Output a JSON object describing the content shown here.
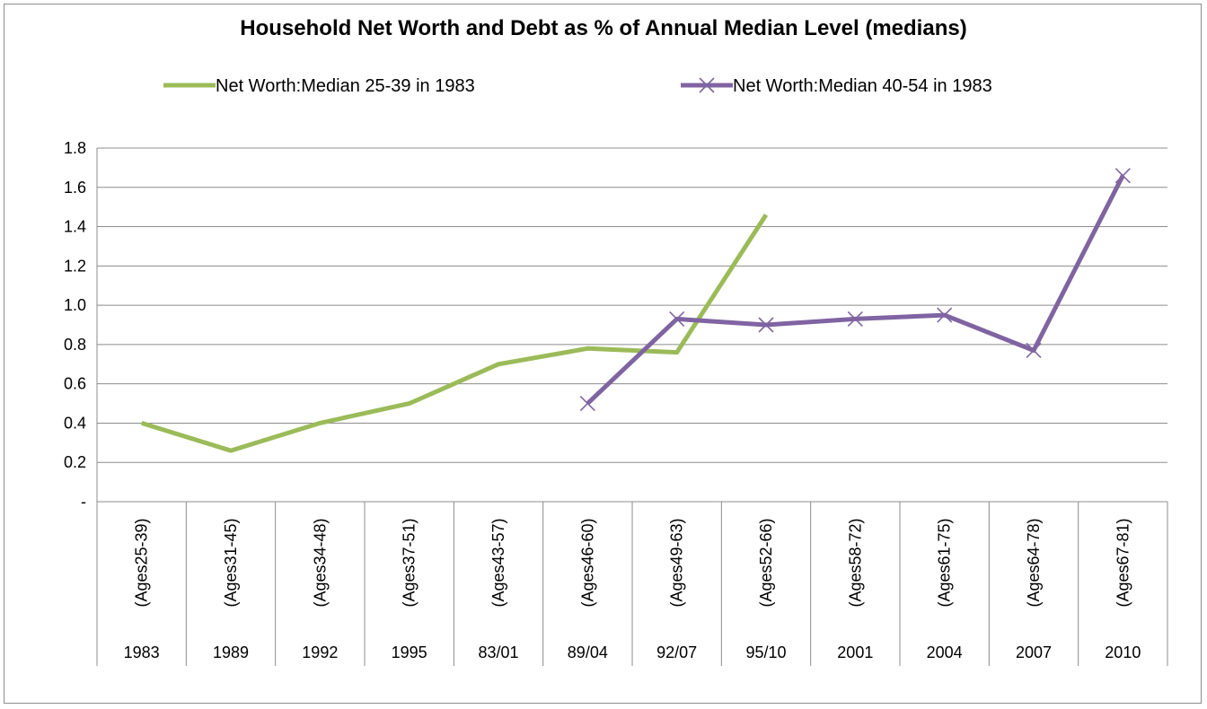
{
  "chart_data": {
    "type": "line",
    "title": "Household Net Worth and Debt as % of Annual Median Level (medians)",
    "categories": [
      {
        "age": "(Ages25-39)",
        "year": "1983"
      },
      {
        "age": "(Ages31-45)",
        "year": "1989"
      },
      {
        "age": "(Ages34-48)",
        "year": "1992"
      },
      {
        "age": "(Ages37-51)",
        "year": "1995"
      },
      {
        "age": "(Ages43-57)",
        "year": "83/01"
      },
      {
        "age": "(Ages46-60)",
        "year": "89/04"
      },
      {
        "age": "(Ages49-63)",
        "year": "92/07"
      },
      {
        "age": "(Ages52-66)",
        "year": "95/10"
      },
      {
        "age": "(Ages58-72)",
        "year": "2001"
      },
      {
        "age": "(Ages61-75)",
        "year": "2004"
      },
      {
        "age": "(Ages64-78)",
        "year": "2007"
      },
      {
        "age": "(Ages67-81)",
        "year": "2010"
      }
    ],
    "series": [
      {
        "name": "Net Worth:Median 25-39 in 1983",
        "color": "#9bbb59",
        "marker": "none",
        "values": [
          0.4,
          0.26,
          0.4,
          0.5,
          0.7,
          0.78,
          0.76,
          1.46,
          null,
          null,
          null,
          null
        ]
      },
      {
        "name": "Net Worth:Median 40-54 in 1983",
        "color": "#8064a2",
        "marker": "x",
        "values": [
          null,
          null,
          null,
          null,
          null,
          0.5,
          0.93,
          0.9,
          0.93,
          0.95,
          0.77,
          1.66
        ]
      }
    ],
    "y_ticks": [
      "-",
      "0.2",
      "0.4",
      "0.6",
      "0.8",
      "1.0",
      "1.2",
      "1.4",
      "1.6",
      "1.8"
    ],
    "ylim": [
      0,
      1.8
    ],
    "grid": true,
    "legend_position": "top"
  }
}
